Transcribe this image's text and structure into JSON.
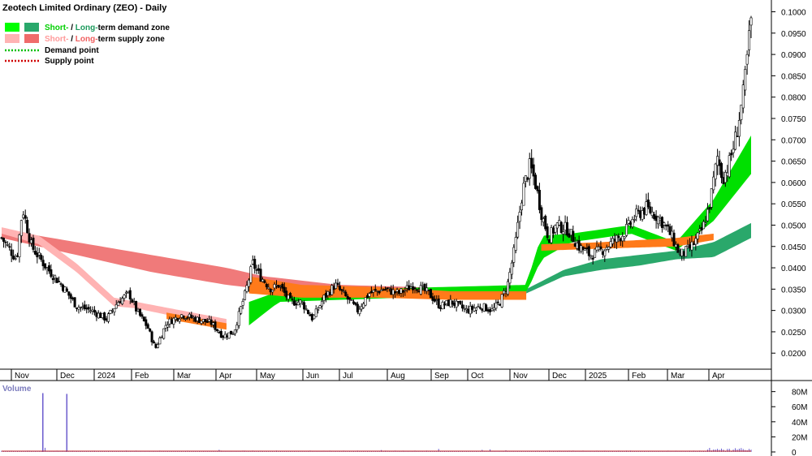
{
  "chart_data": {
    "type": "candlestick",
    "title": "Zeotech Limited Ordinary (ZEO) - Daily",
    "legend": [
      {
        "label_a": "Short-",
        "sep": " / ",
        "label_b": "Long-",
        "label_rest": "term demand zone",
        "swatch_a": "#00ff00",
        "swatch_b": "#2aa86b",
        "text_a_color": "#00d000",
        "text_b_color": "#1c9a5c"
      },
      {
        "label_a": "Short-",
        "sep": " / ",
        "label_b": "Long-",
        "label_rest": "term supply zone",
        "swatch_a": "#ffb3b3",
        "swatch_b": "#f06b6b",
        "text_a_color": "#ff9a9a",
        "text_b_color": "#f06060"
      },
      {
        "label": "Demand point",
        "dotted_color": "#00c000"
      },
      {
        "label": "Supply point",
        "dotted_color": "#d00000"
      }
    ],
    "price_axis": {
      "ylim": [
        0.017,
        0.102
      ],
      "ticks": [
        "0.1000",
        "0.0950",
        "0.0900",
        "0.0850",
        "0.0800",
        "0.0750",
        "0.0700",
        "0.0650",
        "0.0600",
        "0.0550",
        "0.0500",
        "0.0450",
        "0.0400",
        "0.0350",
        "0.0300",
        "0.0250",
        "0.0200"
      ]
    },
    "months": [
      "Nov",
      "Dec",
      "2024",
      "Feb",
      "Mar",
      "Apr",
      "May",
      "Jun",
      "Jul",
      "Aug",
      "Sep",
      "Oct",
      "Nov",
      "Dec",
      "2025",
      "Feb",
      "Mar",
      "Apr"
    ],
    "volume_panel": {
      "label": "Volume",
      "ylim": [
        0,
        85
      ],
      "ticks": [
        "80M",
        "60M",
        "40M",
        "20M",
        "0"
      ],
      "spikes_millions": [
        [
          0.055,
          78
        ],
        [
          0.087,
          77
        ]
      ]
    },
    "price_path": [
      [
        0.0,
        0.047
      ],
      [
        0.02,
        0.042
      ],
      [
        0.028,
        0.054
      ],
      [
        0.04,
        0.045
      ],
      [
        0.06,
        0.04
      ],
      [
        0.08,
        0.036
      ],
      [
        0.1,
        0.031
      ],
      [
        0.12,
        0.03
      ],
      [
        0.14,
        0.028
      ],
      [
        0.155,
        0.032
      ],
      [
        0.17,
        0.034
      ],
      [
        0.18,
        0.03
      ],
      [
        0.195,
        0.026
      ],
      [
        0.205,
        0.021
      ],
      [
        0.22,
        0.027
      ],
      [
        0.24,
        0.029
      ],
      [
        0.26,
        0.028
      ],
      [
        0.28,
        0.027
      ],
      [
        0.295,
        0.024
      ],
      [
        0.31,
        0.025
      ],
      [
        0.325,
        0.034
      ],
      [
        0.335,
        0.041
      ],
      [
        0.345,
        0.038
      ],
      [
        0.36,
        0.035
      ],
      [
        0.37,
        0.036
      ],
      [
        0.385,
        0.032
      ],
      [
        0.4,
        0.032
      ],
      [
        0.415,
        0.028
      ],
      [
        0.43,
        0.033
      ],
      [
        0.445,
        0.036
      ],
      [
        0.46,
        0.033
      ],
      [
        0.475,
        0.03
      ],
      [
        0.49,
        0.034
      ],
      [
        0.51,
        0.035
      ],
      [
        0.53,
        0.034
      ],
      [
        0.55,
        0.036
      ],
      [
        0.57,
        0.034
      ],
      [
        0.585,
        0.031
      ],
      [
        0.6,
        0.032
      ],
      [
        0.62,
        0.03
      ],
      [
        0.64,
        0.031
      ],
      [
        0.655,
        0.03
      ],
      [
        0.665,
        0.032
      ],
      [
        0.675,
        0.036
      ],
      [
        0.685,
        0.045
      ],
      [
        0.695,
        0.058
      ],
      [
        0.705,
        0.064
      ],
      [
        0.712,
        0.06
      ],
      [
        0.72,
        0.053
      ],
      [
        0.73,
        0.047
      ],
      [
        0.74,
        0.05
      ],
      [
        0.755,
        0.049
      ],
      [
        0.77,
        0.045
      ],
      [
        0.785,
        0.043
      ],
      [
        0.8,
        0.044
      ],
      [
        0.815,
        0.046
      ],
      [
        0.83,
        0.048
      ],
      [
        0.845,
        0.052
      ],
      [
        0.86,
        0.054
      ],
      [
        0.875,
        0.052
      ],
      [
        0.885,
        0.05
      ],
      [
        0.895,
        0.047
      ],
      [
        0.905,
        0.043
      ],
      [
        0.915,
        0.044
      ],
      [
        0.925,
        0.046
      ],
      [
        0.935,
        0.049
      ],
      [
        0.945,
        0.055
      ],
      [
        0.955,
        0.066
      ],
      [
        0.962,
        0.061
      ],
      [
        0.97,
        0.064
      ],
      [
        0.98,
        0.071
      ],
      [
        0.99,
        0.081
      ],
      [
        1.0,
        0.098
      ]
    ],
    "long_term_supply": [
      [
        0.0,
        0.049,
        0.047
      ],
      [
        0.1,
        0.046,
        0.043
      ],
      [
        0.2,
        0.043,
        0.039
      ],
      [
        0.3,
        0.04,
        0.036
      ],
      [
        0.35,
        0.038,
        0.035
      ],
      [
        0.45,
        0.036,
        0.034
      ],
      [
        0.55,
        0.0355,
        0.0335
      ],
      [
        0.66,
        0.0345,
        0.0325
      ]
    ],
    "short_term_supply": [
      [
        0.0,
        0.0495,
        0.048
      ],
      [
        0.05,
        0.0475,
        0.0455
      ],
      [
        0.1,
        0.041,
        0.039
      ],
      [
        0.15,
        0.033,
        0.031
      ],
      [
        0.18,
        0.032,
        0.0305
      ],
      [
        0.3,
        0.028,
        0.026
      ]
    ],
    "long_term_demand": [
      [
        0.7,
        0.035,
        0.034
      ],
      [
        0.75,
        0.0395,
        0.038
      ],
      [
        0.8,
        0.042,
        0.0395
      ],
      [
        0.85,
        0.043,
        0.0405
      ],
      [
        0.9,
        0.044,
        0.042
      ],
      [
        0.95,
        0.046,
        0.0425
      ],
      [
        1.0,
        0.0505,
        0.047
      ]
    ],
    "short_term_demand": [
      [
        0.33,
        0.032,
        0.0265
      ],
      [
        0.37,
        0.0345,
        0.032
      ],
      [
        0.7,
        0.036,
        0.034
      ],
      [
        0.72,
        0.0475,
        0.042
      ],
      [
        0.76,
        0.048,
        0.046
      ],
      [
        0.84,
        0.05,
        0.048
      ],
      [
        0.9,
        0.046,
        0.044
      ],
      [
        0.95,
        0.056,
        0.051
      ],
      [
        1.0,
        0.071,
        0.062
      ]
    ]
  }
}
